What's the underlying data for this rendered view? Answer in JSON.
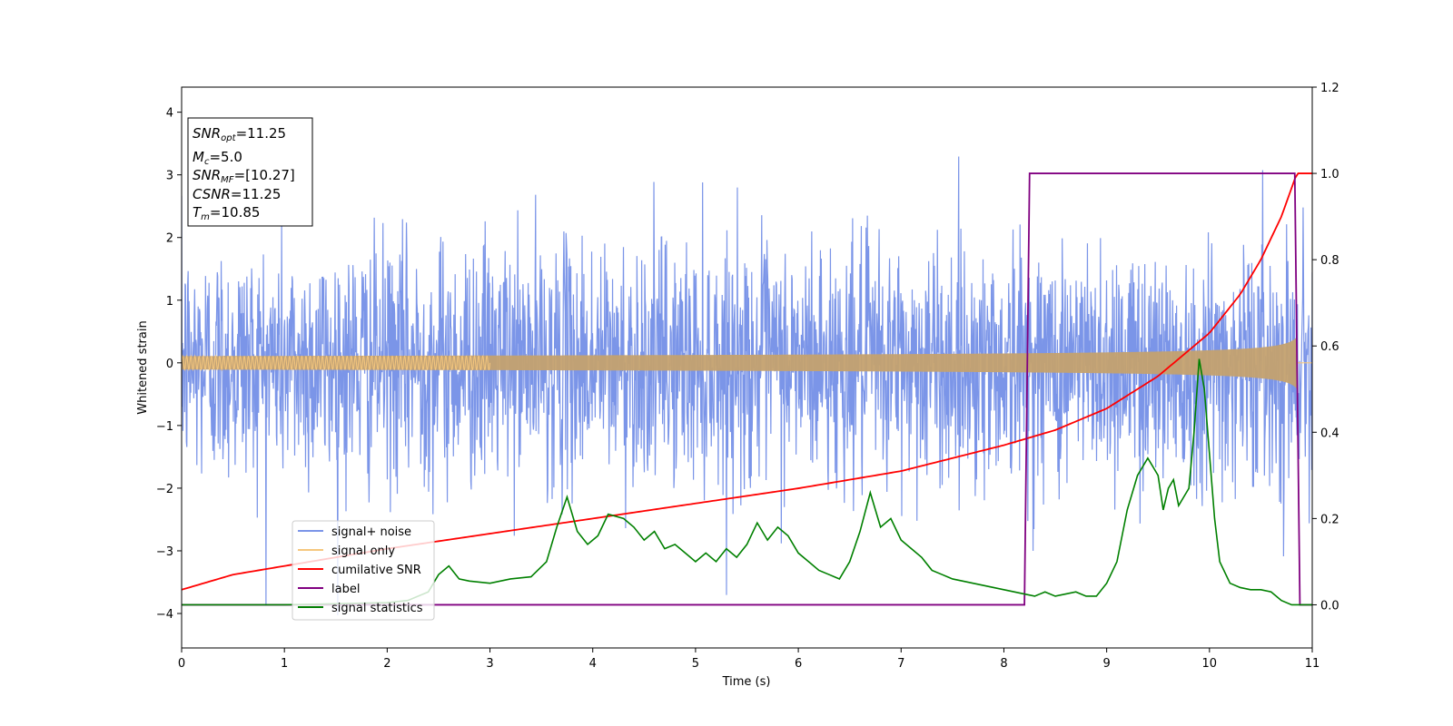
{
  "chart_data": {
    "type": "line",
    "xlabel": "Time (s)",
    "ylabel": "Whitened strain",
    "xlim": [
      0,
      11
    ],
    "ylim": [
      -4.55,
      4.4
    ],
    "y2lim": [
      -0.1,
      1.2
    ],
    "x_ticks": [
      "0",
      "1",
      "2",
      "3",
      "4",
      "5",
      "6",
      "7",
      "8",
      "9",
      "10",
      "11"
    ],
    "y_ticks": [
      "−4",
      "−3",
      "−2",
      "−1",
      "0",
      "1",
      "2",
      "3",
      "4"
    ],
    "y2_ticks": [
      "0.0",
      "0.2",
      "0.4",
      "0.6",
      "0.8",
      "1.0",
      "1.2"
    ],
    "grid": false,
    "legend_position": "lower-left",
    "info_box": {
      "snr_opt": "SNR",
      "snr_opt_sub": "opt",
      "snr_opt_value": "=11.25",
      "mc": "M",
      "mc_sub": "c",
      "mc_value": "=5.0",
      "snr_mf": "SNR",
      "snr_mf_sub": "MF",
      "snr_mf_value": "=[10.27]",
      "csnr": "CSNR",
      "csnr_value": "=11.25",
      "tm": "T",
      "tm_sub": "m",
      "tm_value": "=10.85"
    },
    "series": [
      {
        "name": "signal+ noise",
        "axis": "left",
        "color": "#7b95e8",
        "envelope": {
          "typical_abs": 1.2,
          "peak_abs": 4.0,
          "min_peak": -4.15
        }
      },
      {
        "name": "signal only",
        "axis": "left",
        "color": "#f5c77e",
        "chirp": {
          "amplitude_start": 0.05,
          "amplitude_at_8": 0.15,
          "amplitude_at_10.5": 0.4,
          "amplitude_peak": 0.65,
          "merger_time": 10.85
        }
      },
      {
        "name": "cumilative SNR",
        "axis": "right",
        "color": "#ff0000",
        "x": [
          0,
          0.5,
          1,
          2,
          3,
          4,
          5,
          6,
          7,
          8,
          8.5,
          9,
          9.5,
          10,
          10.3,
          10.5,
          10.7,
          10.85,
          11
        ],
        "values": [
          0.035,
          0.07,
          0.09,
          0.13,
          0.165,
          0.2,
          0.235,
          0.27,
          0.31,
          0.37,
          0.405,
          0.455,
          0.53,
          0.63,
          0.72,
          0.8,
          0.9,
          1.0,
          1.0
        ]
      },
      {
        "name": "label",
        "axis": "right",
        "color": "#800080",
        "x": [
          0,
          8.2,
          8.25,
          10.83,
          10.88,
          11
        ],
        "values": [
          0,
          0,
          1,
          1,
          0,
          0
        ]
      },
      {
        "name": "signal statistics",
        "axis": "right",
        "color": "#008000",
        "x": [
          0,
          1,
          2,
          2.2,
          2.4,
          2.5,
          2.6,
          2.7,
          2.8,
          3,
          3.2,
          3.4,
          3.55,
          3.65,
          3.75,
          3.85,
          3.95,
          4.05,
          4.15,
          4.3,
          4.4,
          4.5,
          4.6,
          4.7,
          4.8,
          4.9,
          5,
          5.1,
          5.2,
          5.3,
          5.4,
          5.5,
          5.6,
          5.7,
          5.8,
          5.9,
          6,
          6.1,
          6.2,
          6.3,
          6.4,
          6.5,
          6.6,
          6.7,
          6.8,
          6.9,
          7,
          7.1,
          7.2,
          7.3,
          7.4,
          7.5,
          7.6,
          7.7,
          7.8,
          7.9,
          8,
          8.1,
          8.2,
          8.3,
          8.4,
          8.5,
          8.6,
          8.7,
          8.8,
          8.9,
          9,
          9.1,
          9.2,
          9.3,
          9.4,
          9.5,
          9.55,
          9.6,
          9.65,
          9.7,
          9.75,
          9.8,
          9.85,
          9.9,
          9.95,
          10,
          10.05,
          10.1,
          10.2,
          10.3,
          10.4,
          10.5,
          10.6,
          10.7,
          10.8,
          10.9,
          11
        ],
        "values": [
          0.0,
          0.0,
          0.005,
          0.01,
          0.03,
          0.07,
          0.09,
          0.06,
          0.055,
          0.05,
          0.06,
          0.065,
          0.1,
          0.18,
          0.25,
          0.17,
          0.14,
          0.16,
          0.21,
          0.2,
          0.18,
          0.15,
          0.17,
          0.13,
          0.14,
          0.12,
          0.1,
          0.12,
          0.1,
          0.13,
          0.11,
          0.14,
          0.19,
          0.15,
          0.18,
          0.16,
          0.12,
          0.1,
          0.08,
          0.07,
          0.06,
          0.1,
          0.17,
          0.26,
          0.18,
          0.2,
          0.15,
          0.13,
          0.11,
          0.08,
          0.07,
          0.06,
          0.055,
          0.05,
          0.045,
          0.04,
          0.035,
          0.03,
          0.025,
          0.02,
          0.03,
          0.02,
          0.025,
          0.03,
          0.02,
          0.02,
          0.05,
          0.1,
          0.22,
          0.3,
          0.34,
          0.3,
          0.22,
          0.27,
          0.29,
          0.23,
          0.25,
          0.27,
          0.4,
          0.57,
          0.5,
          0.35,
          0.2,
          0.1,
          0.05,
          0.04,
          0.035,
          0.035,
          0.03,
          0.01,
          0.0,
          0.0,
          0.0
        ]
      }
    ]
  }
}
